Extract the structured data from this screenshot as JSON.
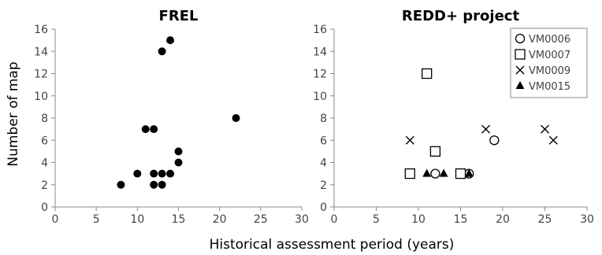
{
  "figure": {
    "xlabel": "Historical assessment period (years)",
    "ylabel": "Number of map"
  },
  "chart_data": [
    {
      "type": "scatter",
      "title": "FREL",
      "xlim": [
        0,
        30
      ],
      "ylim": [
        0,
        16
      ],
      "x_ticks": [
        "0",
        "5",
        "10",
        "15",
        "20",
        "25",
        "30"
      ],
      "y_ticks": [
        "0",
        "2",
        "4",
        "6",
        "8",
        "10",
        "12",
        "14",
        "16"
      ],
      "grid": false,
      "series": [
        {
          "marker": "filled-circle",
          "color": "#000000",
          "points": [
            {
              "x": 8,
              "y": 2
            },
            {
              "x": 10,
              "y": 3
            },
            {
              "x": 11,
              "y": 7
            },
            {
              "x": 12,
              "y": 7
            },
            {
              "x": 12,
              "y": 2
            },
            {
              "x": 12,
              "y": 3
            },
            {
              "x": 13,
              "y": 14
            },
            {
              "x": 13,
              "y": 3
            },
            {
              "x": 13,
              "y": 2
            },
            {
              "x": 14,
              "y": 15
            },
            {
              "x": 14,
              "y": 3
            },
            {
              "x": 15,
              "y": 5
            },
            {
              "x": 15,
              "y": 4
            },
            {
              "x": 22,
              "y": 8
            }
          ]
        }
      ]
    },
    {
      "type": "scatter",
      "title": "REDD+ project",
      "xlim": [
        0,
        30
      ],
      "ylim": [
        0,
        16
      ],
      "x_ticks": [
        "0",
        "5",
        "10",
        "15",
        "20",
        "25",
        "30"
      ],
      "y_ticks": [
        "0",
        "2",
        "4",
        "6",
        "8",
        "10",
        "12",
        "14",
        "16"
      ],
      "grid": false,
      "legend_position": "top-right",
      "series": [
        {
          "name": "VM0006",
          "marker": "open-circle",
          "color": "#000000",
          "points": [
            {
              "x": 12,
              "y": 3
            },
            {
              "x": 16,
              "y": 3
            },
            {
              "x": 19,
              "y": 6
            }
          ]
        },
        {
          "name": "VM0007",
          "marker": "open-square",
          "color": "#000000",
          "points": [
            {
              "x": 9,
              "y": 3
            },
            {
              "x": 11,
              "y": 12
            },
            {
              "x": 12,
              "y": 5
            },
            {
              "x": 15,
              "y": 3
            }
          ]
        },
        {
          "name": "VM0009",
          "marker": "cross",
          "color": "#000000",
          "points": [
            {
              "x": 9,
              "y": 6
            },
            {
              "x": 18,
              "y": 7
            },
            {
              "x": 25,
              "y": 7
            },
            {
              "x": 26,
              "y": 6
            }
          ]
        },
        {
          "name": "VM0015",
          "marker": "filled-triangle",
          "color": "#000000",
          "points": [
            {
              "x": 11,
              "y": 3
            },
            {
              "x": 13,
              "y": 3
            },
            {
              "x": 16,
              "y": 3
            }
          ]
        }
      ]
    }
  ]
}
